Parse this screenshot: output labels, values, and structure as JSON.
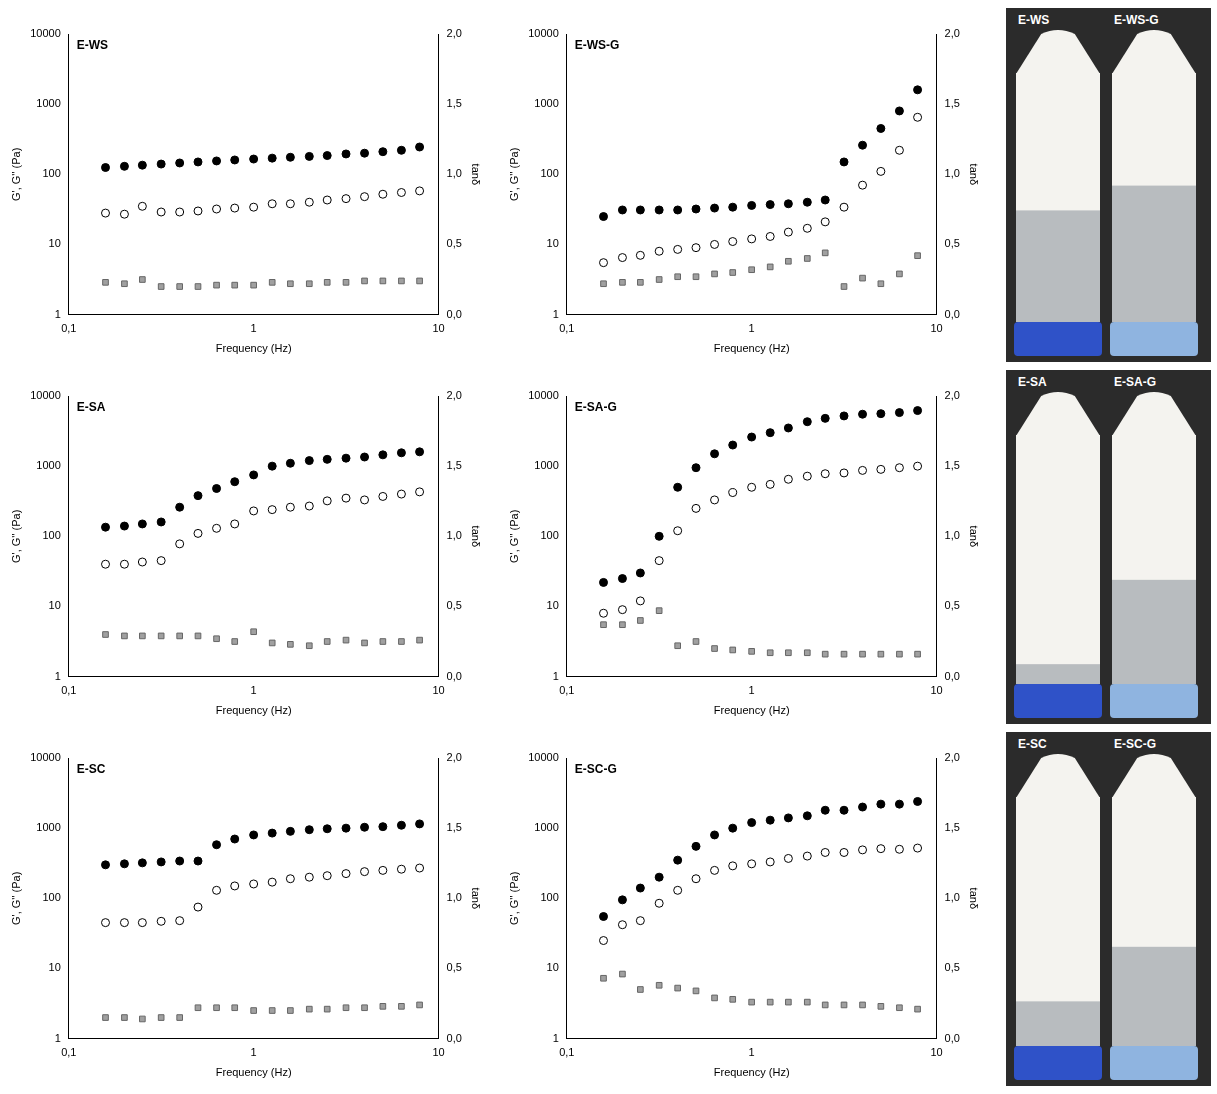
{
  "chart_data": [
    {
      "type": "scatter",
      "title": "E-WS",
      "x_label": "Frequency (Hz)",
      "y_label": "G', G'' (Pa)",
      "y2_label": "tanδ",
      "x": [
        0.158,
        0.2,
        0.25,
        0.316,
        0.398,
        0.5,
        0.63,
        0.79,
        1.0,
        1.26,
        1.58,
        2.0,
        2.5,
        3.16,
        3.98,
        5.0,
        6.3,
        7.9
      ],
      "series": [
        {
          "color": "#000000",
          "marker": "circle",
          "values": [
            125,
            130,
            135,
            140,
            145,
            150,
            155,
            160,
            165,
            170,
            175,
            180,
            185,
            195,
            200,
            210,
            220,
            245
          ]
        },
        {
          "color": "#000000",
          "marker": "open_circle",
          "values": [
            28,
            27,
            35,
            29,
            29,
            30,
            32,
            33,
            34,
            38,
            38,
            40,
            43,
            45,
            48,
            52,
            55,
            58
          ]
        },
        {
          "color": "#a0a0a0",
          "marker": "square",
          "axis": "y2",
          "values": [
            0.23,
            0.22,
            0.25,
            0.2,
            0.2,
            0.2,
            0.21,
            0.21,
            0.21,
            0.23,
            0.22,
            0.22,
            0.23,
            0.23,
            0.24,
            0.24,
            0.24,
            0.24
          ]
        }
      ],
      "xlim": [
        0.1,
        10
      ],
      "ylim": [
        1,
        10000
      ],
      "y2lim": [
        0,
        2
      ],
      "log": true,
      "grid": false,
      "xticks": [
        {
          "value": 0.1,
          "label": "0,1"
        },
        1,
        10
      ],
      "yticks": [
        1,
        10,
        100,
        1000,
        10000
      ],
      "y2ticks": [
        {
          "value": 0,
          "label": "0,0"
        },
        {
          "value": 0.5,
          "label": "0,5"
        },
        {
          "value": 1,
          "label": "1,0"
        },
        {
          "value": 1.5,
          "label": "1,5"
        },
        {
          "value": 2,
          "label": "2,0"
        }
      ]
    },
    {
      "type": "scatter",
      "title": "E-WS-G",
      "x_label": "Frequency (Hz)",
      "y_label": "G', G'' (Pa)",
      "y2_label": "tanδ",
      "x": [
        0.158,
        0.2,
        0.25,
        0.316,
        0.398,
        0.5,
        0.63,
        0.79,
        1.0,
        1.26,
        1.58,
        2.0,
        2.5,
        3.16,
        3.98,
        5.0,
        6.3,
        7.9
      ],
      "series": [
        {
          "color": "#000000",
          "marker": "circle",
          "values": [
            25,
            31,
            31,
            31,
            31,
            32,
            33,
            34,
            36,
            37,
            38,
            40,
            43,
            150,
            260,
            450,
            800,
            1600
          ]
        },
        {
          "color": "#000000",
          "marker": "open_circle",
          "values": [
            5.5,
            6.5,
            7,
            8,
            8.5,
            9,
            10,
            11,
            12,
            13,
            15,
            17,
            21,
            34,
            70,
            110,
            220,
            650
          ]
        },
        {
          "color": "#a0a0a0",
          "marker": "square",
          "axis": "y2",
          "values": [
            0.22,
            0.23,
            0.23,
            0.25,
            0.27,
            0.27,
            0.29,
            0.3,
            0.32,
            0.34,
            0.38,
            0.4,
            0.44,
            0.2,
            0.26,
            0.22,
            0.29,
            0.42
          ]
        }
      ],
      "xlim": [
        0.1,
        10
      ],
      "ylim": [
        1,
        10000
      ],
      "y2lim": [
        0,
        2
      ],
      "log": true,
      "grid": false,
      "xticks": [
        {
          "value": 0.1,
          "label": "0,1"
        },
        1,
        10
      ],
      "yticks": [
        1,
        10,
        100,
        1000,
        10000
      ],
      "y2ticks": [
        {
          "value": 0,
          "label": "0,0"
        },
        {
          "value": 0.5,
          "label": "0,5"
        },
        {
          "value": 1,
          "label": "1,0"
        },
        {
          "value": 1.5,
          "label": "1,5"
        },
        {
          "value": 2,
          "label": "2,0"
        }
      ]
    },
    {
      "type": "scatter",
      "title": "E-SA",
      "x_label": "Frequency (Hz)",
      "y_label": "G', G'' (Pa)",
      "y2_label": "tanδ",
      "x": [
        0.158,
        0.2,
        0.25,
        0.316,
        0.398,
        0.5,
        0.63,
        0.79,
        1.0,
        1.26,
        1.58,
        2.0,
        2.5,
        3.16,
        3.98,
        5.0,
        6.3,
        7.9
      ],
      "series": [
        {
          "color": "#000000",
          "marker": "circle",
          "values": [
            135,
            140,
            150,
            160,
            260,
            380,
            480,
            600,
            750,
            1000,
            1100,
            1200,
            1250,
            1300,
            1350,
            1450,
            1550,
            1600
          ]
        },
        {
          "color": "#000000",
          "marker": "open_circle",
          "values": [
            40,
            40,
            43,
            45,
            78,
            110,
            130,
            150,
            230,
            240,
            260,
            270,
            320,
            350,
            330,
            370,
            400,
            430
          ]
        },
        {
          "color": "#a0a0a0",
          "marker": "square",
          "axis": "y2",
          "values": [
            0.3,
            0.29,
            0.29,
            0.29,
            0.29,
            0.29,
            0.27,
            0.25,
            0.32,
            0.24,
            0.23,
            0.22,
            0.25,
            0.26,
            0.24,
            0.25,
            0.25,
            0.26
          ]
        }
      ],
      "xlim": [
        0.1,
        10
      ],
      "ylim": [
        1,
        10000
      ],
      "y2lim": [
        0,
        2
      ],
      "log": true,
      "grid": false,
      "xticks": [
        {
          "value": 0.1,
          "label": "0,1"
        },
        1,
        10
      ],
      "yticks": [
        1,
        10,
        100,
        1000,
        10000
      ],
      "y2ticks": [
        {
          "value": 0,
          "label": "0,0"
        },
        {
          "value": 0.5,
          "label": "0,5"
        },
        {
          "value": 1,
          "label": "1,0"
        },
        {
          "value": 1.5,
          "label": "1,5"
        },
        {
          "value": 2,
          "label": "2,0"
        }
      ]
    },
    {
      "type": "scatter",
      "title": "E-SA-G",
      "x_label": "Frequency (Hz)",
      "y_label": "G', G'' (Pa)",
      "y2_label": "tanδ",
      "x": [
        0.158,
        0.2,
        0.25,
        0.316,
        0.398,
        0.5,
        0.63,
        0.79,
        1.0,
        1.26,
        1.58,
        2.0,
        2.5,
        3.16,
        3.98,
        5.0,
        6.3,
        7.9
      ],
      "series": [
        {
          "color": "#000000",
          "marker": "circle",
          "values": [
            22,
            25,
            30,
            100,
            500,
            950,
            1500,
            2000,
            2600,
            3000,
            3500,
            4300,
            4800,
            5200,
            5500,
            5600,
            5800,
            6200
          ]
        },
        {
          "color": "#000000",
          "marker": "open_circle",
          "values": [
            8,
            9,
            12,
            45,
            120,
            250,
            330,
            420,
            500,
            550,
            650,
            720,
            780,
            800,
            870,
            900,
            950,
            1000
          ]
        },
        {
          "color": "#a0a0a0",
          "marker": "square",
          "axis": "y2",
          "values": [
            0.37,
            0.37,
            0.4,
            0.47,
            0.22,
            0.25,
            0.2,
            0.19,
            0.18,
            0.17,
            0.17,
            0.17,
            0.16,
            0.16,
            0.16,
            0.16,
            0.16,
            0.16
          ]
        }
      ],
      "xlim": [
        0.1,
        10
      ],
      "ylim": [
        1,
        10000
      ],
      "y2lim": [
        0,
        2
      ],
      "log": true,
      "grid": false,
      "xticks": [
        {
          "value": 0.1,
          "label": "0,1"
        },
        1,
        10
      ],
      "yticks": [
        1,
        10,
        100,
        1000,
        10000
      ],
      "y2ticks": [
        {
          "value": 0,
          "label": "0,0"
        },
        {
          "value": 0.5,
          "label": "0,5"
        },
        {
          "value": 1,
          "label": "1,0"
        },
        {
          "value": 1.5,
          "label": "1,5"
        },
        {
          "value": 2,
          "label": "2,0"
        }
      ]
    },
    {
      "type": "scatter",
      "title": "E-SC",
      "x_label": "Frequency (Hz)",
      "y_label": "G', G'' (Pa)",
      "y2_label": "tanδ",
      "x": [
        0.158,
        0.2,
        0.25,
        0.316,
        0.398,
        0.5,
        0.63,
        0.79,
        1.0,
        1.26,
        1.58,
        2.0,
        2.5,
        3.16,
        3.98,
        5.0,
        6.3,
        7.9
      ],
      "series": [
        {
          "color": "#000000",
          "marker": "circle",
          "values": [
            300,
            310,
            320,
            330,
            340,
            340,
            580,
            700,
            800,
            850,
            900,
            950,
            980,
            1000,
            1030,
            1050,
            1100,
            1150
          ]
        },
        {
          "color": "#000000",
          "marker": "open_circle",
          "values": [
            45,
            45,
            45,
            47,
            48,
            75,
            130,
            150,
            160,
            170,
            190,
            200,
            210,
            225,
            240,
            250,
            260,
            270
          ]
        },
        {
          "color": "#a0a0a0",
          "marker": "square",
          "axis": "y2",
          "values": [
            0.15,
            0.15,
            0.14,
            0.15,
            0.15,
            0.22,
            0.22,
            0.22,
            0.2,
            0.2,
            0.2,
            0.21,
            0.21,
            0.22,
            0.22,
            0.23,
            0.23,
            0.24
          ]
        }
      ],
      "xlim": [
        0.1,
        10
      ],
      "ylim": [
        1,
        10000
      ],
      "y2lim": [
        0,
        2
      ],
      "log": true,
      "grid": false,
      "xticks": [
        {
          "value": 0.1,
          "label": "0,1"
        },
        1,
        10
      ],
      "yticks": [
        1,
        10,
        100,
        1000,
        10000
      ],
      "y2ticks": [
        {
          "value": 0,
          "label": "0,0"
        },
        {
          "value": 0.5,
          "label": "0,5"
        },
        {
          "value": 1,
          "label": "1,0"
        },
        {
          "value": 1.5,
          "label": "1,5"
        },
        {
          "value": 2,
          "label": "2,0"
        }
      ]
    },
    {
      "type": "scatter",
      "title": "E-SC-G",
      "x_label": "Frequency (Hz)",
      "y_label": "G', G'' (Pa)",
      "y2_label": "tanδ",
      "x": [
        0.158,
        0.2,
        0.25,
        0.316,
        0.398,
        0.5,
        0.63,
        0.79,
        1.0,
        1.26,
        1.58,
        2.0,
        2.5,
        3.16,
        3.98,
        5.0,
        6.3,
        7.9
      ],
      "series": [
        {
          "color": "#000000",
          "marker": "circle",
          "values": [
            55,
            95,
            140,
            200,
            350,
            550,
            800,
            1000,
            1200,
            1300,
            1400,
            1500,
            1800,
            1800,
            2000,
            2200,
            2200,
            2400
          ]
        },
        {
          "color": "#000000",
          "marker": "open_circle",
          "values": [
            25,
            42,
            48,
            85,
            130,
            190,
            250,
            290,
            310,
            330,
            370,
            400,
            450,
            450,
            490,
            510,
            500,
            520
          ]
        },
        {
          "color": "#a0a0a0",
          "marker": "square",
          "axis": "y2",
          "values": [
            0.43,
            0.46,
            0.35,
            0.38,
            0.36,
            0.34,
            0.29,
            0.28,
            0.26,
            0.26,
            0.26,
            0.26,
            0.24,
            0.24,
            0.24,
            0.23,
            0.22,
            0.21
          ]
        }
      ],
      "xlim": [
        0.1,
        10
      ],
      "ylim": [
        1,
        10000
      ],
      "y2lim": [
        0,
        2
      ],
      "log": true,
      "grid": false,
      "xticks": [
        {
          "value": 0.1,
          "label": "0,1"
        },
        1,
        10
      ],
      "yticks": [
        1,
        10,
        100,
        1000,
        10000
      ],
      "y2ticks": [
        {
          "value": 0,
          "label": "0,0"
        },
        {
          "value": 0.5,
          "label": "0,5"
        },
        {
          "value": 1,
          "label": "1,0"
        },
        {
          "value": 1.5,
          "label": "1,5"
        },
        {
          "value": 2,
          "label": "2,0"
        }
      ]
    }
  ],
  "photos": [
    {
      "labels": [
        "E-WS",
        "E-WS-G"
      ]
    },
    {
      "labels": [
        "E-SA",
        "E-SA-G"
      ]
    },
    {
      "labels": [
        "E-SC",
        "E-SC-G"
      ]
    }
  ]
}
